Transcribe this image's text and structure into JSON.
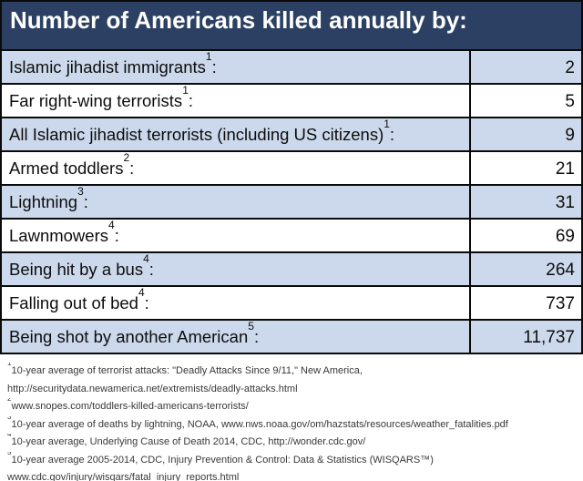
{
  "header": {
    "title": "Number of Americans killed annually by:"
  },
  "table": {
    "label_suffix": ":",
    "rows": [
      {
        "label": "Islamic jihadist immigrants",
        "sup": "1",
        "value": "2"
      },
      {
        "label": "Far right-wing terrorists",
        "sup": "1",
        "value": "5"
      },
      {
        "label": "All Islamic jihadist terrorists (including US citizens)",
        "sup": "1",
        "value": "9"
      },
      {
        "label": "Armed toddlers",
        "sup": "2",
        "value": "21"
      },
      {
        "label": "Lightning",
        "sup": "3",
        "value": "31"
      },
      {
        "label": "Lawnmowers",
        "sup": "4",
        "value": "69"
      },
      {
        "label": "Being hit by a bus",
        "sup": "4",
        "value": "264"
      },
      {
        "label": "Falling out of bed",
        "sup": "4",
        "value": "737"
      },
      {
        "label": "Being shot by another American",
        "sup": "5",
        "value": "11,737"
      }
    ]
  },
  "footnotes": [
    {
      "sup": "1",
      "lines": [
        "10-year average of terrorist attacks: \"Deadly Attacks Since 9/11,\" New America,",
        "http://securitydata.newamerica.net/extremists/deadly-attacks.html"
      ]
    },
    {
      "sup": "2",
      "lines": [
        "www.snopes.com/toddlers-killed-americans-terrorists/"
      ]
    },
    {
      "sup": "3",
      "lines": [
        "10-year average of deaths by lightning, NOAA, www.nws.noaa.gov/om/hazstats/resources/weather_fatalities.pdf"
      ]
    },
    {
      "sup": "4",
      "lines": [
        "10-year average, Underlying Cause of Death 2014, CDC, http://wonder.cdc.gov/"
      ]
    },
    {
      "sup": "5",
      "lines": [
        "10-year average 2005-2014, CDC, Injury Prevention & Control: Data & Statistics (WISQARS™)",
        "www.cdc.gov/injury/wisqars/fatal_injury_reports.html"
      ]
    }
  ],
  "colors": {
    "header_bg": "#2B4063",
    "row_shaded_bg": "#CCD9EC",
    "row_plain_bg": "#FFFFFF",
    "border": "#0A0A0A",
    "title_text": "#FFFFFF",
    "footnote_text": "#383838"
  },
  "chart_data": {
    "type": "table",
    "title": "Number of Americans killed annually by:",
    "categories": [
      "Islamic jihadist immigrants",
      "Far right-wing terrorists",
      "All Islamic jihadist terrorists (including US citizens)",
      "Armed toddlers",
      "Lightning",
      "Lawnmowers",
      "Being hit by a bus",
      "Falling out of bed",
      "Being shot by another American"
    ],
    "values": [
      2,
      5,
      9,
      21,
      31,
      69,
      264,
      737,
      11737
    ],
    "value_label": "Number of Americans killed annually",
    "legend": "none",
    "grid": "table-borders"
  }
}
